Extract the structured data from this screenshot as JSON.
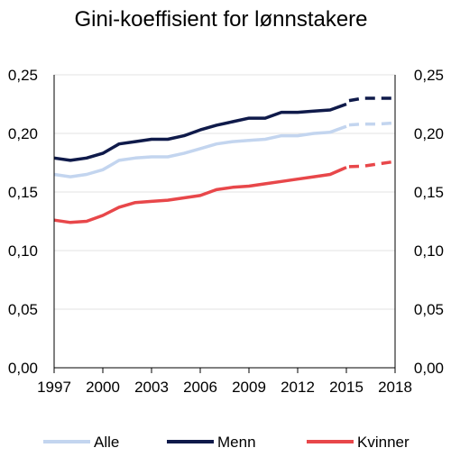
{
  "chart_data": {
    "type": "line",
    "title": "Gini-koeffisient for lønnstakere",
    "xlabel": "",
    "ylabel": "",
    "xlim": [
      1997,
      2018
    ],
    "ylim": [
      0.0,
      0.25
    ],
    "x_ticks": [
      "1997",
      "2000",
      "2003",
      "2006",
      "2009",
      "2012",
      "2015",
      "2018"
    ],
    "y_ticks": [
      "0,00",
      "0,05",
      "0,10",
      "0,15",
      "0,20",
      "0,25"
    ],
    "y_ticks_right": [
      "0,00",
      "0,05",
      "0,10",
      "0,15",
      "0,20",
      "0,25"
    ],
    "grid": true,
    "legend_position": "bottom",
    "projection_start_x": 2015,
    "projection_style": "dashed",
    "series": [
      {
        "name": "Alle",
        "color": "#c3d5ef",
        "x": [
          1997,
          1998,
          1999,
          2000,
          2001,
          2002,
          2003,
          2004,
          2005,
          2006,
          2007,
          2008,
          2009,
          2010,
          2011,
          2012,
          2013,
          2014,
          2015,
          2016,
          2017,
          2018
        ],
        "values": [
          0.165,
          0.163,
          0.165,
          0.169,
          0.177,
          0.179,
          0.18,
          0.18,
          0.183,
          0.187,
          0.191,
          0.193,
          0.194,
          0.195,
          0.198,
          0.198,
          0.2,
          0.201,
          0.206,
          0.208,
          0.208,
          0.209
        ]
      },
      {
        "name": "Menn",
        "color": "#0f1a4a",
        "x": [
          1997,
          1998,
          1999,
          2000,
          2001,
          2002,
          2003,
          2004,
          2005,
          2006,
          2007,
          2008,
          2009,
          2010,
          2011,
          2012,
          2013,
          2014,
          2015,
          2016,
          2017,
          2018
        ],
        "values": [
          0.179,
          0.177,
          0.179,
          0.183,
          0.191,
          0.193,
          0.195,
          0.195,
          0.198,
          0.203,
          0.207,
          0.21,
          0.213,
          0.213,
          0.218,
          0.218,
          0.219,
          0.22,
          0.225,
          0.23,
          0.23,
          0.23
        ]
      },
      {
        "name": "Kvinner",
        "color": "#e8474a",
        "x": [
          1997,
          1998,
          1999,
          2000,
          2001,
          2002,
          2003,
          2004,
          2005,
          2006,
          2007,
          2008,
          2009,
          2010,
          2011,
          2012,
          2013,
          2014,
          2015,
          2016,
          2017,
          2018
        ],
        "values": [
          0.126,
          0.124,
          0.125,
          0.13,
          0.137,
          0.141,
          0.142,
          0.143,
          0.145,
          0.147,
          0.152,
          0.154,
          0.155,
          0.157,
          0.159,
          0.161,
          0.163,
          0.165,
          0.171,
          0.172,
          0.174,
          0.176
        ]
      }
    ]
  }
}
